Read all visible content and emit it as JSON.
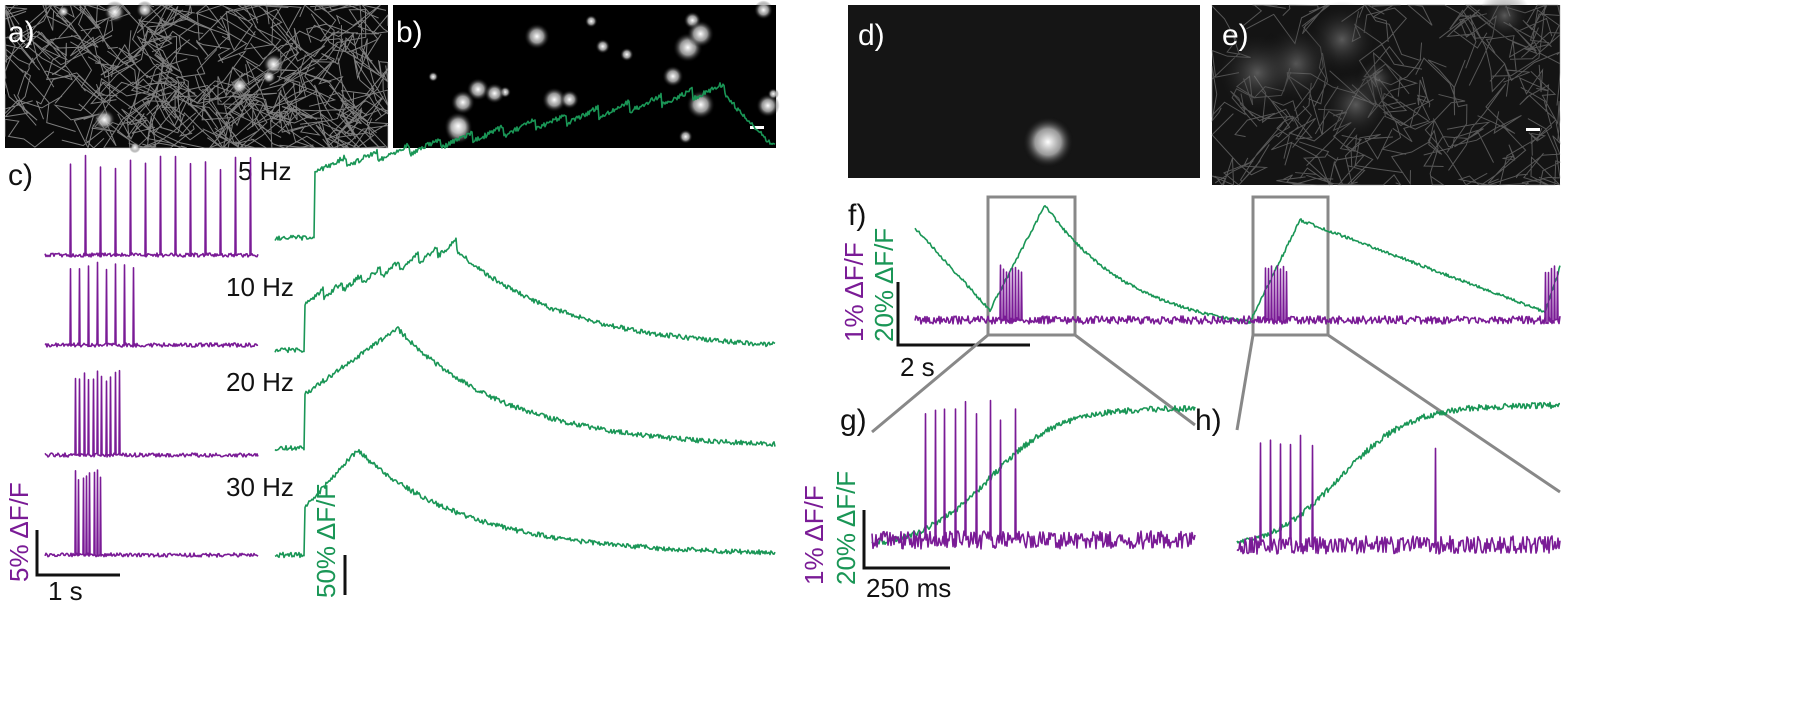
{
  "panels": {
    "a": "a)",
    "b": "b)",
    "c": "c)",
    "d": "d)",
    "e": "e)",
    "f": "f)",
    "g": "g)",
    "h": "h)"
  },
  "panel_c": {
    "frequencies": [
      "5 Hz",
      "10 Hz",
      "20 Hz",
      "30 Hz"
    ],
    "purple_scale": "5% ΔF/F",
    "time_scale": "1 s",
    "green_scale": "50% ΔF/F"
  },
  "panel_f": {
    "purple_scale": "1% ΔF/F",
    "green_scale": "20% ΔF/F",
    "time_scale": "2 s"
  },
  "panel_g": {
    "purple_scale": "1% ΔF/F",
    "green_scale": "20% ΔF/F",
    "time_scale": "250 ms"
  }
}
